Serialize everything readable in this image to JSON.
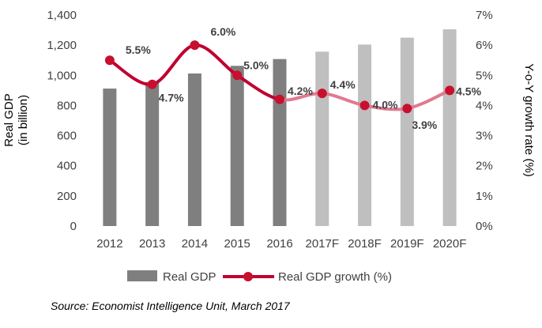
{
  "chart_data": {
    "type": "bar",
    "categories": [
      "2012",
      "2013",
      "2014",
      "2015",
      "2016",
      "2017F",
      "2018F",
      "2019F",
      "2020F"
    ],
    "series": [
      {
        "name": "Real GDP",
        "type": "bar",
        "axis": "left",
        "values": [
          912,
          955,
          1012,
          1063,
          1108,
          1157,
          1204,
          1250,
          1305
        ],
        "colors": [
          "#7f7f7f",
          "#7f7f7f",
          "#7f7f7f",
          "#7f7f7f",
          "#7f7f7f",
          "#bfbfbf",
          "#bfbfbf",
          "#bfbfbf",
          "#bfbfbf"
        ]
      },
      {
        "name": "Real GDP growth (%)",
        "type": "line",
        "axis": "right",
        "values": [
          5.5,
          4.7,
          6.0,
          5.0,
          4.2,
          4.4,
          4.0,
          3.9,
          4.5
        ],
        "labels": [
          "5.5%",
          "4.7%",
          "6.0%",
          "5.0%",
          "4.2%",
          "4.4%",
          "4.0%",
          "3.9%",
          "4.5%"
        ],
        "actual_color": "#c00030",
        "forecast_color": "#e07a90",
        "marker_color": "#c8102e"
      }
    ],
    "ylabel": "Real GDP\n(in billion)",
    "y2label": "Y-o-Y growth rate (%)",
    "ylim": [
      0,
      1400
    ],
    "yticks": [
      "0",
      "200",
      "400",
      "600",
      "800",
      "1,000",
      "1,200",
      "1,400"
    ],
    "y2lim": [
      0,
      7
    ],
    "y2ticks": [
      "0%",
      "1%",
      "2%",
      "3%",
      "4%",
      "5%",
      "6%",
      "7%"
    ],
    "grid": false,
    "legend": "bottom",
    "source": "Source: Economist Intelligence Unit, March 2017"
  }
}
